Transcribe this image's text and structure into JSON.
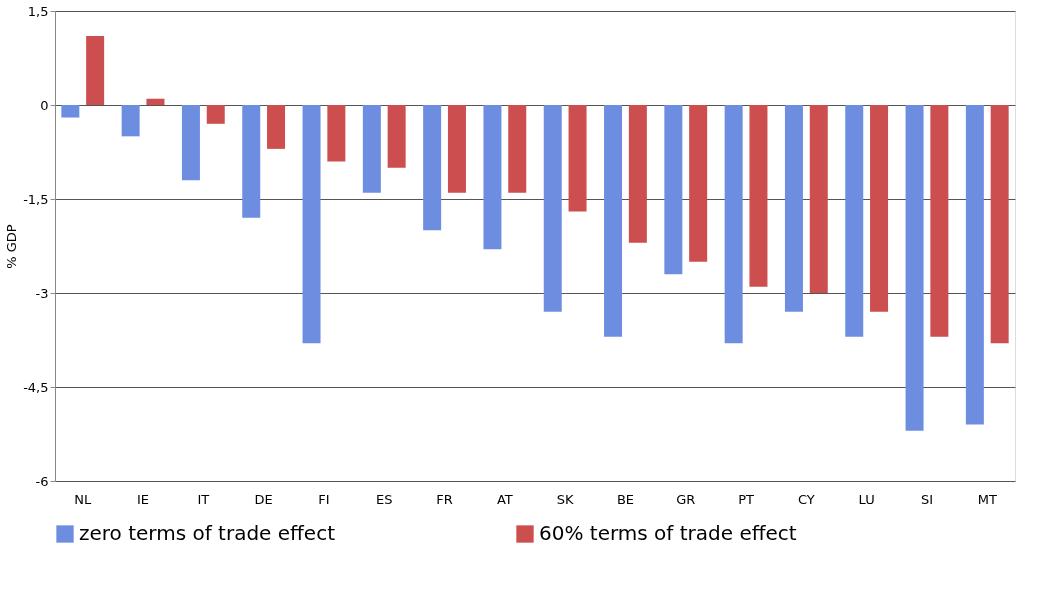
{
  "chart_data": {
    "type": "bar",
    "ylabel": "% GDP",
    "categories": [
      "NL",
      "IE",
      "IT",
      "DE",
      "FI",
      "ES",
      "FR",
      "AT",
      "SK",
      "BE",
      "GR",
      "PT",
      "CY",
      "LU",
      "SI",
      "MT"
    ],
    "series": [
      {
        "name": "zero terms of trade effect",
        "color": "#6d8ee0",
        "values": [
          -0.2,
          -0.5,
          -1.2,
          -1.8,
          -3.8,
          -1.4,
          -2.0,
          -2.3,
          -3.3,
          -3.7,
          -2.7,
          -3.8,
          -3.3,
          -3.7,
          -5.2,
          -5.1
        ]
      },
      {
        "name": "60% terms of trade effect",
        "color": "#cc4e4e",
        "values": [
          1.1,
          0.1,
          -0.3,
          -0.7,
          -0.9,
          -1.0,
          -1.4,
          -1.4,
          -1.7,
          -2.2,
          -2.5,
          -2.9,
          -3.0,
          -3.3,
          -3.7,
          -3.8
        ]
      }
    ],
    "ylim": [
      -6,
      1.5
    ],
    "yticks": [
      {
        "value": 1.5,
        "label": "1,5"
      },
      0,
      {
        "value": -1.5,
        "label": "-1,5"
      },
      -3,
      {
        "value": -4.5,
        "label": "-4,5"
      },
      -6
    ],
    "grid": "y",
    "legend": "bottom"
  }
}
